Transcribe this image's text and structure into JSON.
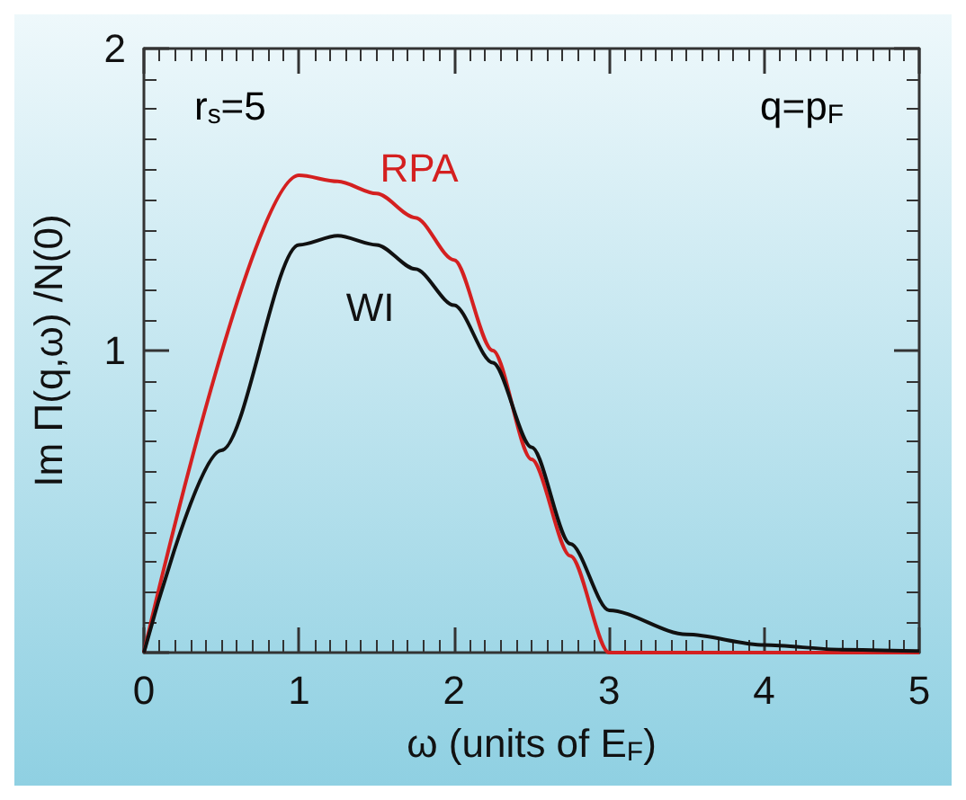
{
  "chart_data": {
    "type": "line",
    "xlabel": "ω (units of E$_{F}$)",
    "ylabel": "Im Π(q,ω) /N(0)",
    "annotations": [
      "r$_{s}$=5",
      "q=p$_{F}$"
    ],
    "x": [
      0,
      0.5,
      1,
      1.25,
      1.5,
      1.75,
      2,
      2.25,
      2.5,
      2.75,
      3,
      3.5,
      4,
      4.5,
      5
    ],
    "series": [
      {
        "name": "RPA",
        "color": "#d42020",
        "x": [
          0,
          1,
          1.25,
          1.5,
          1.75,
          2,
          2.25,
          2.5,
          2.75,
          3,
          5
        ],
        "values": [
          0,
          1.58,
          1.56,
          1.52,
          1.44,
          1.3,
          1.0,
          0.64,
          0.32,
          0,
          0
        ]
      },
      {
        "name": "WI",
        "color": "#111111",
        "values": [
          0,
          0.67,
          1.35,
          1.38,
          1.35,
          1.27,
          1.15,
          0.96,
          0.68,
          0.36,
          0.14,
          0.06,
          0.025,
          0.01,
          0.005
        ]
      }
    ],
    "xlim": [
      0,
      5
    ],
    "xticks": [
      0,
      1,
      2,
      3,
      4,
      5
    ],
    "ylim": [
      0,
      2
    ],
    "yticks": [
      {
        "value": 0,
        "label": null
      },
      1,
      2
    ],
    "marker": "none"
  }
}
